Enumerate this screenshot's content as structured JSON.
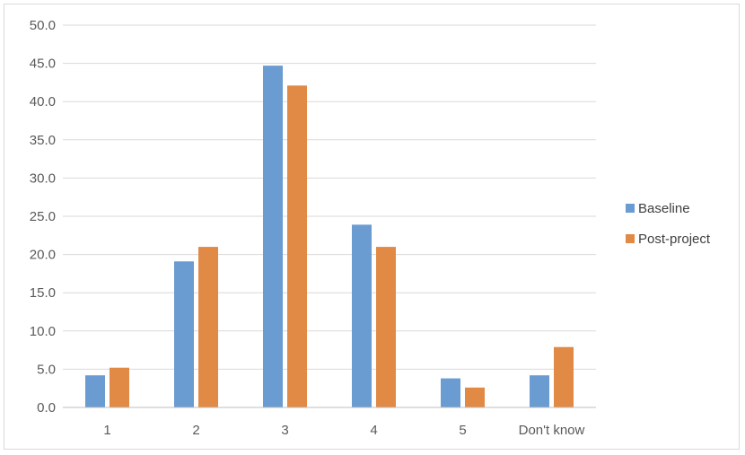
{
  "chart_data": {
    "type": "bar",
    "categories": [
      "1",
      "2",
      "3",
      "4",
      "5",
      "Don't know"
    ],
    "series": [
      {
        "name": "Baseline",
        "color": "#6a9bd1",
        "values": [
          4.2,
          19.1,
          44.7,
          23.9,
          3.8,
          4.2
        ]
      },
      {
        "name": "Post-project",
        "color": "#e08a46",
        "values": [
          5.2,
          21.0,
          42.1,
          21.0,
          2.6,
          7.9
        ]
      }
    ],
    "y_ticks": [
      "0.0",
      "5.0",
      "10.0",
      "15.0",
      "20.0",
      "25.0",
      "30.0",
      "35.0",
      "40.0",
      "45.0",
      "50.0"
    ],
    "ylim": [
      0,
      50
    ],
    "grid": true,
    "legend_position": "right"
  }
}
